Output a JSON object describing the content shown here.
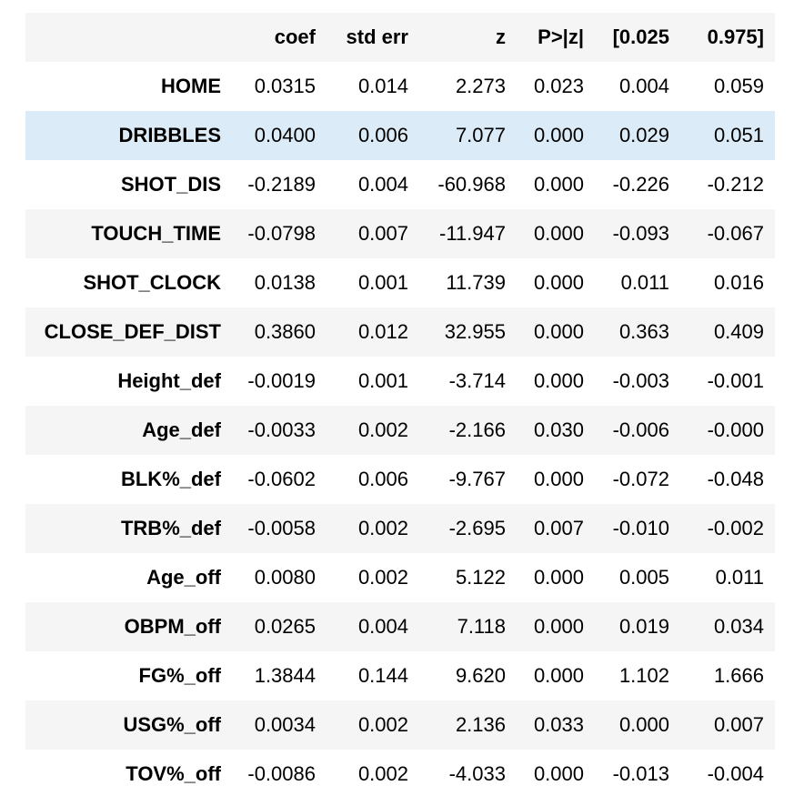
{
  "table": {
    "columns": [
      "",
      "coef",
      "std err",
      "z",
      "P>|z|",
      "[0.025",
      "0.975]"
    ],
    "rows": [
      {
        "label": "HOME",
        "cells": [
          "0.0315",
          "0.014",
          "2.273",
          "0.023",
          "0.004",
          "0.059"
        ]
      },
      {
        "label": "DRIBBLES",
        "cells": [
          "0.0400",
          "0.006",
          "7.077",
          "0.000",
          "0.029",
          "0.051"
        ]
      },
      {
        "label": "SHOT_DIS",
        "cells": [
          "-0.2189",
          "0.004",
          "-60.968",
          "0.000",
          "-0.226",
          "-0.212"
        ]
      },
      {
        "label": "TOUCH_TIME",
        "cells": [
          "-0.0798",
          "0.007",
          "-11.947",
          "0.000",
          "-0.093",
          "-0.067"
        ]
      },
      {
        "label": "SHOT_CLOCK",
        "cells": [
          "0.0138",
          "0.001",
          "11.739",
          "0.000",
          "0.011",
          "0.016"
        ]
      },
      {
        "label": "CLOSE_DEF_DIST",
        "cells": [
          "0.3860",
          "0.012",
          "32.955",
          "0.000",
          "0.363",
          "0.409"
        ]
      },
      {
        "label": "Height_def",
        "cells": [
          "-0.0019",
          "0.001",
          "-3.714",
          "0.000",
          "-0.003",
          "-0.001"
        ]
      },
      {
        "label": "Age_def",
        "cells": [
          "-0.0033",
          "0.002",
          "-2.166",
          "0.030",
          "-0.006",
          "-0.000"
        ]
      },
      {
        "label": "BLK%_def",
        "cells": [
          "-0.0602",
          "0.006",
          "-9.767",
          "0.000",
          "-0.072",
          "-0.048"
        ]
      },
      {
        "label": "TRB%_def",
        "cells": [
          "-0.0058",
          "0.002",
          "-2.695",
          "0.007",
          "-0.010",
          "-0.002"
        ]
      },
      {
        "label": "Age_off",
        "cells": [
          "0.0080",
          "0.002",
          "5.122",
          "0.000",
          "0.005",
          "0.011"
        ]
      },
      {
        "label": "OBPM_off",
        "cells": [
          "0.0265",
          "0.004",
          "7.118",
          "0.000",
          "0.019",
          "0.034"
        ]
      },
      {
        "label": "FG%_off",
        "cells": [
          "1.3844",
          "0.144",
          "9.620",
          "0.000",
          "1.102",
          "1.666"
        ]
      },
      {
        "label": "USG%_off",
        "cells": [
          "0.0034",
          "0.002",
          "2.136",
          "0.033",
          "0.000",
          "0.007"
        ]
      },
      {
        "label": "TOV%_off",
        "cells": [
          "-0.0086",
          "0.002",
          "-4.033",
          "0.000",
          "-0.013",
          "-0.004"
        ]
      }
    ],
    "highlighted_row": "DRIBBLES",
    "colors": {
      "header_bg": "#f5f5f5",
      "stripe_bg": "#f5f5f5",
      "highlight_bg": "#dcebf8"
    }
  }
}
